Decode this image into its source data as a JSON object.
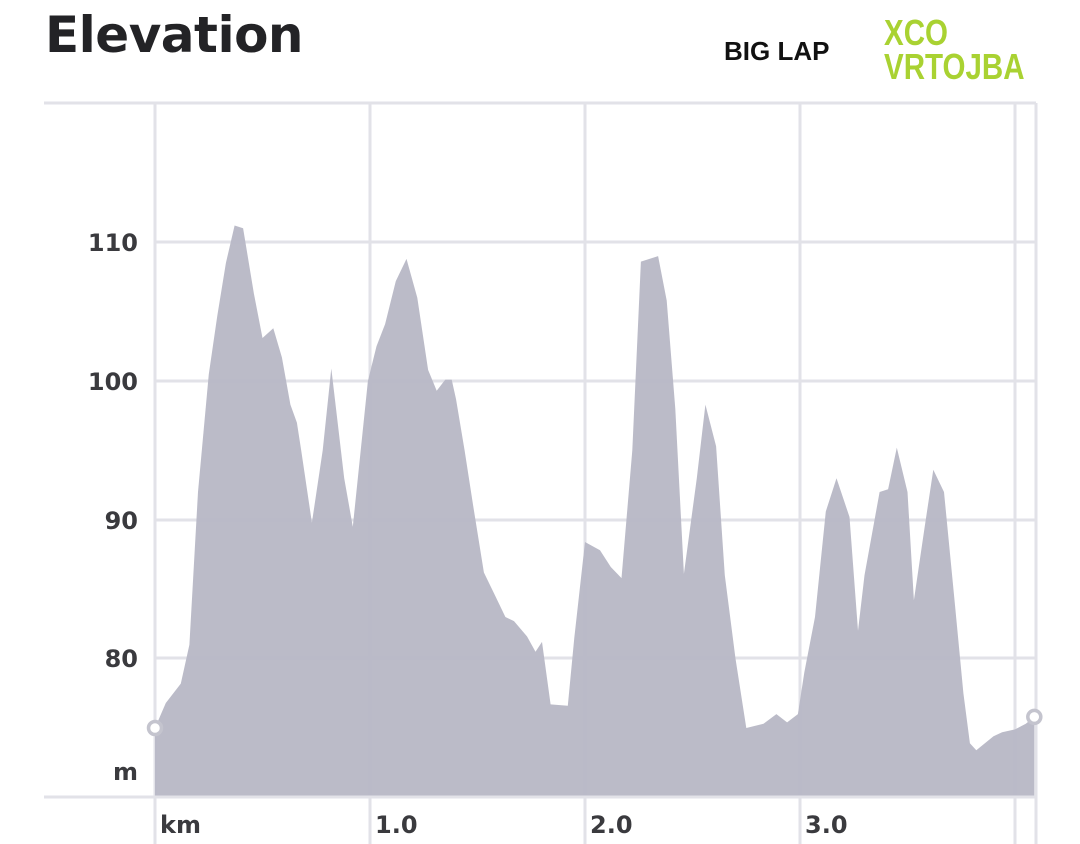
{
  "header": {
    "title": "Elevation",
    "lap_label": "BIG LAP",
    "brand_line1": "XCO",
    "brand_line2": "VRTOJBA",
    "brand_color": "#a9d232"
  },
  "axes": {
    "y_unit": "m",
    "x_unit": "km",
    "y_ticks": [
      "110",
      "100",
      "90",
      "80"
    ],
    "x_ticks": [
      "1.0",
      "2.0",
      "3.0"
    ]
  },
  "colors": {
    "fill": "#b9b9c6",
    "grid": "#e2e2e8",
    "marker": "#c4c4ce"
  },
  "chart_data": {
    "type": "area",
    "title": "Elevation",
    "subtitle": "BIG LAP — XCO VRTOJBA",
    "xlabel": "km",
    "ylabel": "m",
    "xlim": [
      0,
      4.09
    ],
    "ylim": [
      70,
      118
    ],
    "x_ticks": [
      1.0,
      2.0,
      3.0
    ],
    "y_ticks": [
      80,
      90,
      100,
      110
    ],
    "grid": true,
    "legend": null,
    "x": [
      0.0,
      0.05,
      0.12,
      0.16,
      0.2,
      0.25,
      0.29,
      0.33,
      0.37,
      0.41,
      0.46,
      0.5,
      0.55,
      0.59,
      0.63,
      0.66,
      0.68,
      0.73,
      0.78,
      0.82,
      0.88,
      0.92,
      0.99,
      1.03,
      1.07,
      1.12,
      1.17,
      1.22,
      1.27,
      1.31,
      1.35,
      1.38,
      1.4,
      1.44,
      1.48,
      1.53,
      1.58,
      1.63,
      1.67,
      1.73,
      1.77,
      1.8,
      1.84,
      1.92,
      1.95,
      2.0,
      2.07,
      2.12,
      2.17,
      2.22,
      2.26,
      2.34,
      2.38,
      2.42,
      2.46,
      2.52,
      2.56,
      2.61,
      2.65,
      2.7,
      2.75,
      2.83,
      2.89,
      2.94,
      2.99,
      3.02,
      3.07,
      3.12,
      3.17,
      3.23,
      3.27,
      3.3,
      3.37,
      3.41,
      3.45,
      3.5,
      3.53,
      3.58,
      3.62,
      3.67,
      3.72,
      3.76,
      3.79,
      3.82,
      3.86,
      3.9,
      3.94,
      4.0,
      4.05,
      4.09
    ],
    "values": [
      75.0,
      76.8,
      78.2,
      81.0,
      92.0,
      100.5,
      104.7,
      108.5,
      111.2,
      111.0,
      106.3,
      103.1,
      103.8,
      101.7,
      98.3,
      97.0,
      95.0,
      89.8,
      95.0,
      100.9,
      93.0,
      89.5,
      100.0,
      102.5,
      104.1,
      107.2,
      108.8,
      106.0,
      100.8,
      99.3,
      100.1,
      100.1,
      98.7,
      95.0,
      91.0,
      86.2,
      84.6,
      83.0,
      82.7,
      81.6,
      80.5,
      81.2,
      76.7,
      76.6,
      81.5,
      88.4,
      87.8,
      86.6,
      85.8,
      95.0,
      108.6,
      109.0,
      105.8,
      98.0,
      86.1,
      93.0,
      98.3,
      95.3,
      86.0,
      80.0,
      75.0,
      75.3,
      76.0,
      75.4,
      76.0,
      79.0,
      83.0,
      90.6,
      93.0,
      90.2,
      82.0,
      86.0,
      92.0,
      92.2,
      95.2,
      92.0,
      84.2,
      89.5,
      93.6,
      92.0,
      84.0,
      77.5,
      73.9,
      73.4,
      73.9,
      74.4,
      74.7,
      74.9,
      75.3,
      75.8
    ]
  }
}
